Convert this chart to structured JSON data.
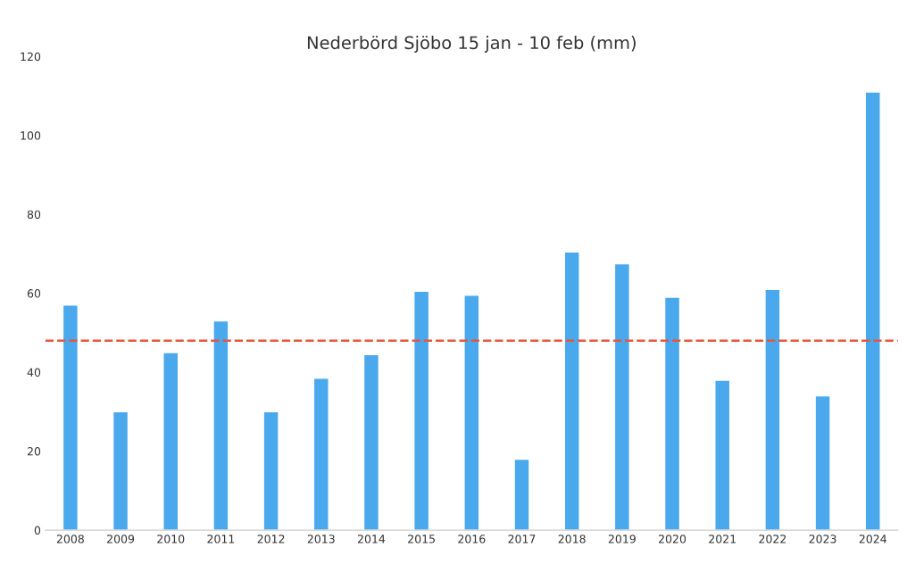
{
  "chart_data": {
    "type": "bar",
    "title": "Nederbörd Sjöbo 15 jan - 10 feb (mm)",
    "categories": [
      "2008",
      "2009",
      "2010",
      "2011",
      "2012",
      "2013",
      "2014",
      "2015",
      "2016",
      "2017",
      "2018",
      "2019",
      "2020",
      "2021",
      "2022",
      "2023",
      "2024"
    ],
    "values": [
      57,
      30,
      45,
      53,
      30,
      38.5,
      44.5,
      60.5,
      59.5,
      18,
      70.5,
      67.5,
      59,
      38,
      61,
      34,
      111
    ],
    "color": "#4aa8ec",
    "ylim": [
      0,
      120
    ],
    "yticks": [
      0,
      20,
      40,
      60,
      80,
      100,
      120
    ],
    "grid": false,
    "ref_lines": [
      {
        "axis": "y",
        "value": 48,
        "color": "#e8553a",
        "line_style": "dashed"
      }
    ]
  }
}
